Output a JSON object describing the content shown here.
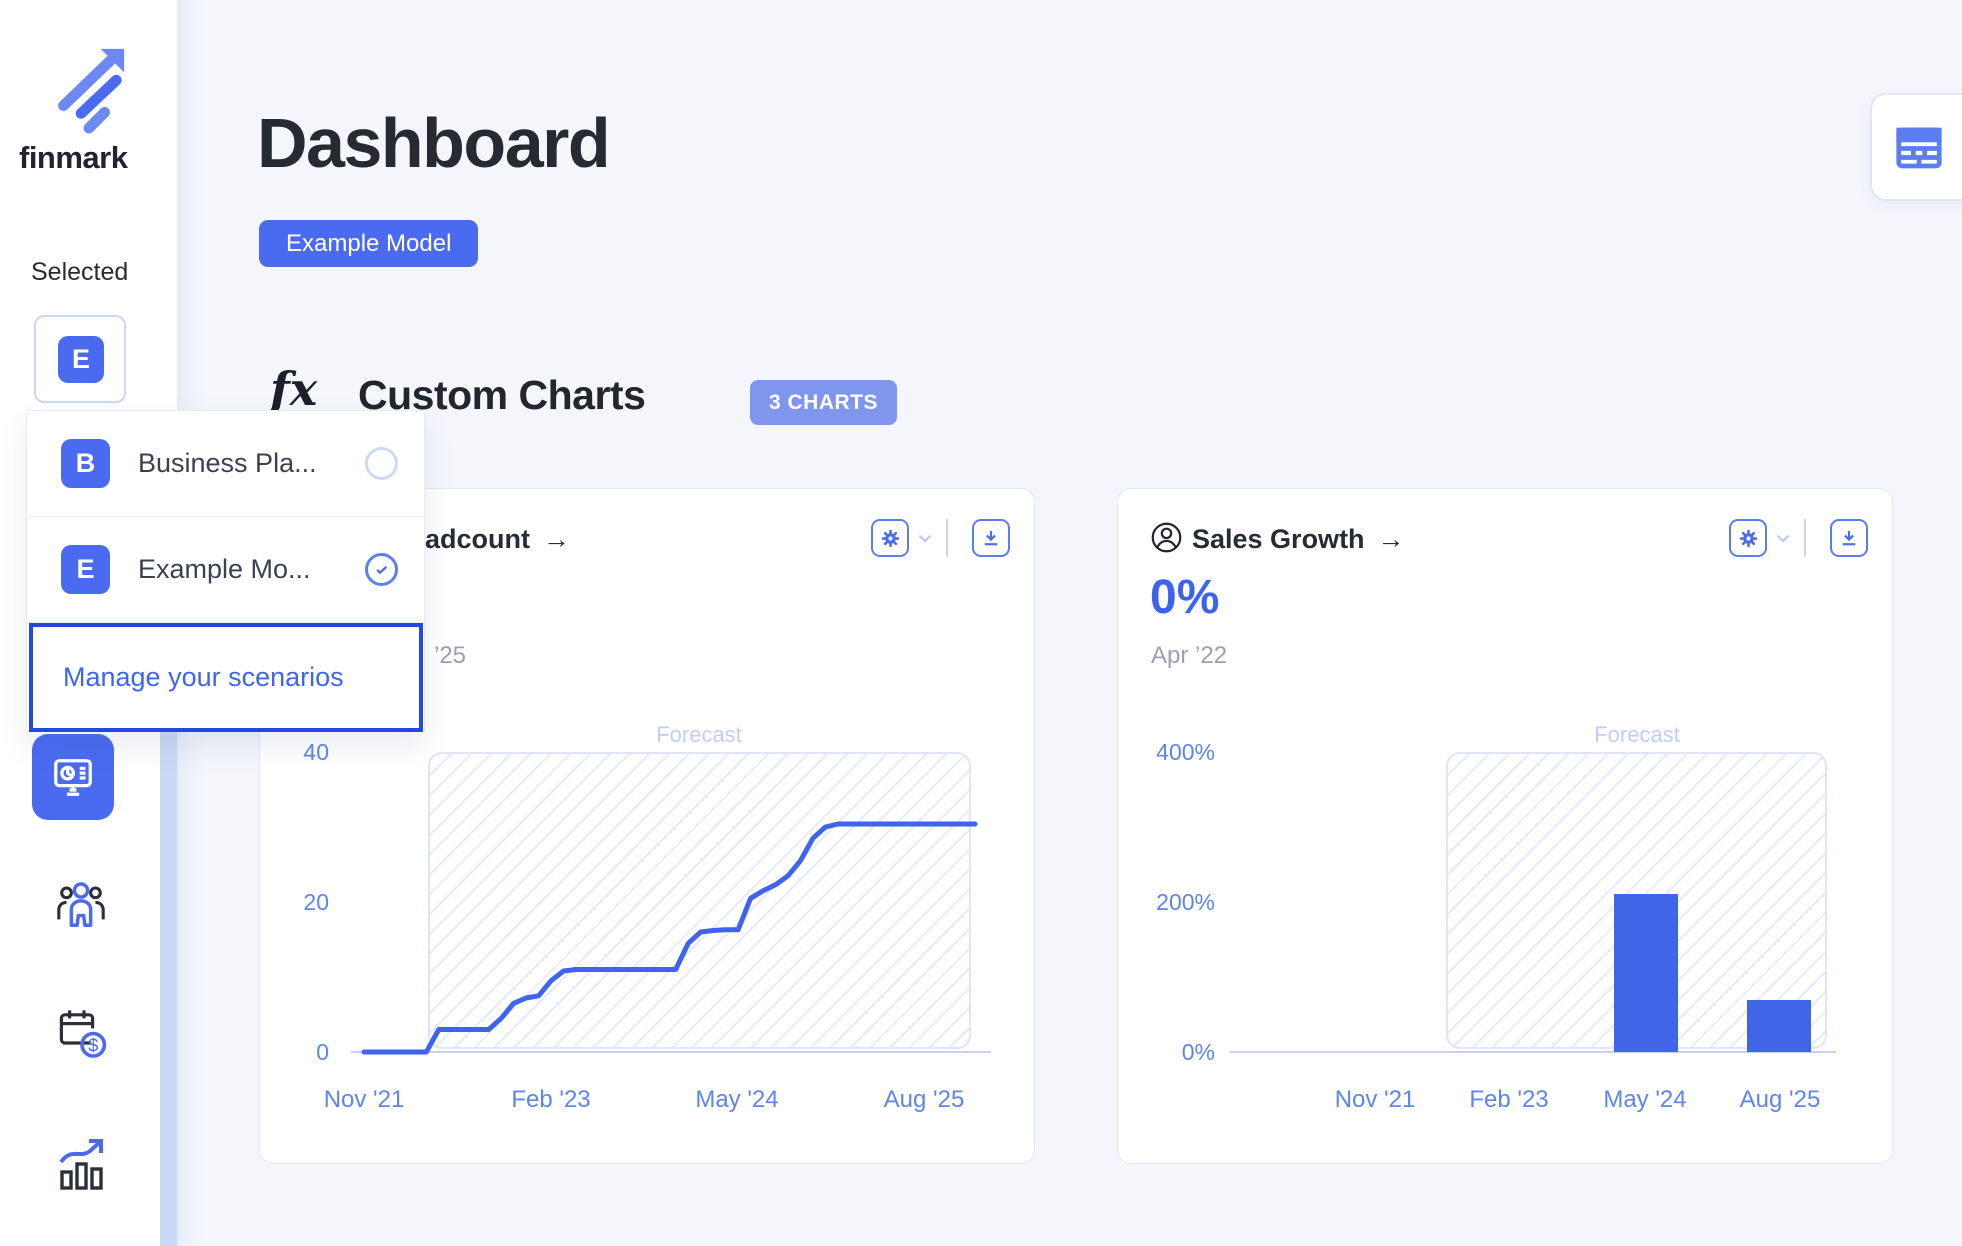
{
  "sidebar": {
    "brand": "finmark",
    "selected_label": "Selected",
    "selected_avatar": "E",
    "dropdown": {
      "items": [
        {
          "initial": "B",
          "label": "Business Pla...",
          "checked": false
        },
        {
          "initial": "E",
          "label": "Example Mo...",
          "checked": true
        }
      ],
      "manage_label": "Manage your scenarios"
    }
  },
  "header": {
    "title": "Dashboard",
    "model_button_label": "Example Model"
  },
  "section": {
    "fx_glyph": "fx",
    "title": "Custom Charts",
    "count_badge": "3 CHARTS"
  },
  "icons": {
    "arrow_right": "→",
    "dollar": "$"
  },
  "cards": [
    {
      "title_visible_fragment": "adcount",
      "subtitle_visible_fragment": "’25",
      "forecast_label": "Forecast",
      "y_ticks": [
        "40",
        "20",
        "0"
      ],
      "x_ticks": [
        "Nov '21",
        "Feb '23",
        "May '24",
        "Aug '25"
      ]
    },
    {
      "title": "Sales Growth",
      "big_value": "0%",
      "subtitle": "Apr ’22",
      "forecast_label": "Forecast",
      "y_ticks": [
        "400%",
        "200%",
        "0%"
      ],
      "x_ticks": [
        "Nov '21",
        "Feb '23",
        "May '24",
        "Aug '25"
      ]
    }
  ],
  "chart_data": [
    {
      "type": "line",
      "title_visible": "...adcount",
      "x_unit": "months from Nov 2021",
      "x_ticks": [
        {
          "label": "Nov '21",
          "month": 0
        },
        {
          "label": "Feb '23",
          "month": 15
        },
        {
          "label": "May '24",
          "month": 30
        },
        {
          "label": "Aug '25",
          "month": 45
        }
      ],
      "ylim": [
        0,
        40
      ],
      "y_ticks": [
        0,
        20,
        40
      ],
      "forecast_region": {
        "label": "Forecast",
        "start_month": 5,
        "end_month": 49
      },
      "series": [
        {
          "name": "Headcount",
          "monthly_values": [
            0,
            0,
            0,
            0,
            0,
            0,
            3,
            3,
            3,
            3,
            3,
            4.5,
            6.5,
            7.2,
            7.5,
            9.5,
            10.8,
            11,
            11,
            11,
            11,
            11,
            11,
            11,
            11,
            11,
            14.5,
            16,
            16.2,
            16.3,
            16.3,
            20.5,
            21.5,
            22.3,
            23.5,
            25.5,
            28.5,
            30,
            30.4,
            30.4,
            30.4,
            30.4,
            30.4,
            30.4,
            30.4,
            30.4,
            30.4,
            30.4,
            30.4,
            30.4
          ]
        }
      ]
    },
    {
      "type": "bar",
      "title": "Sales Growth",
      "current_value_pct": 0,
      "current_date": "Apr '22",
      "categories": [
        "Nov '21",
        "Feb '23",
        "May '24",
        "Aug '25"
      ],
      "values_pct": [
        0,
        0,
        211,
        69
      ],
      "ylim_pct": [
        0,
        400
      ],
      "y_ticks": [
        "0%",
        "200%",
        "400%"
      ],
      "forecast_region": {
        "label": "Forecast",
        "covers": "Feb '23 through Aug '25"
      }
    }
  ],
  "colors": {
    "accent": "#4a6bf0",
    "line": "#3e63ee",
    "bar": "#4065e6",
    "axis_label": "#5c85ee",
    "forecast_label": "#c2cdf2",
    "muted": "#99a1b1"
  }
}
